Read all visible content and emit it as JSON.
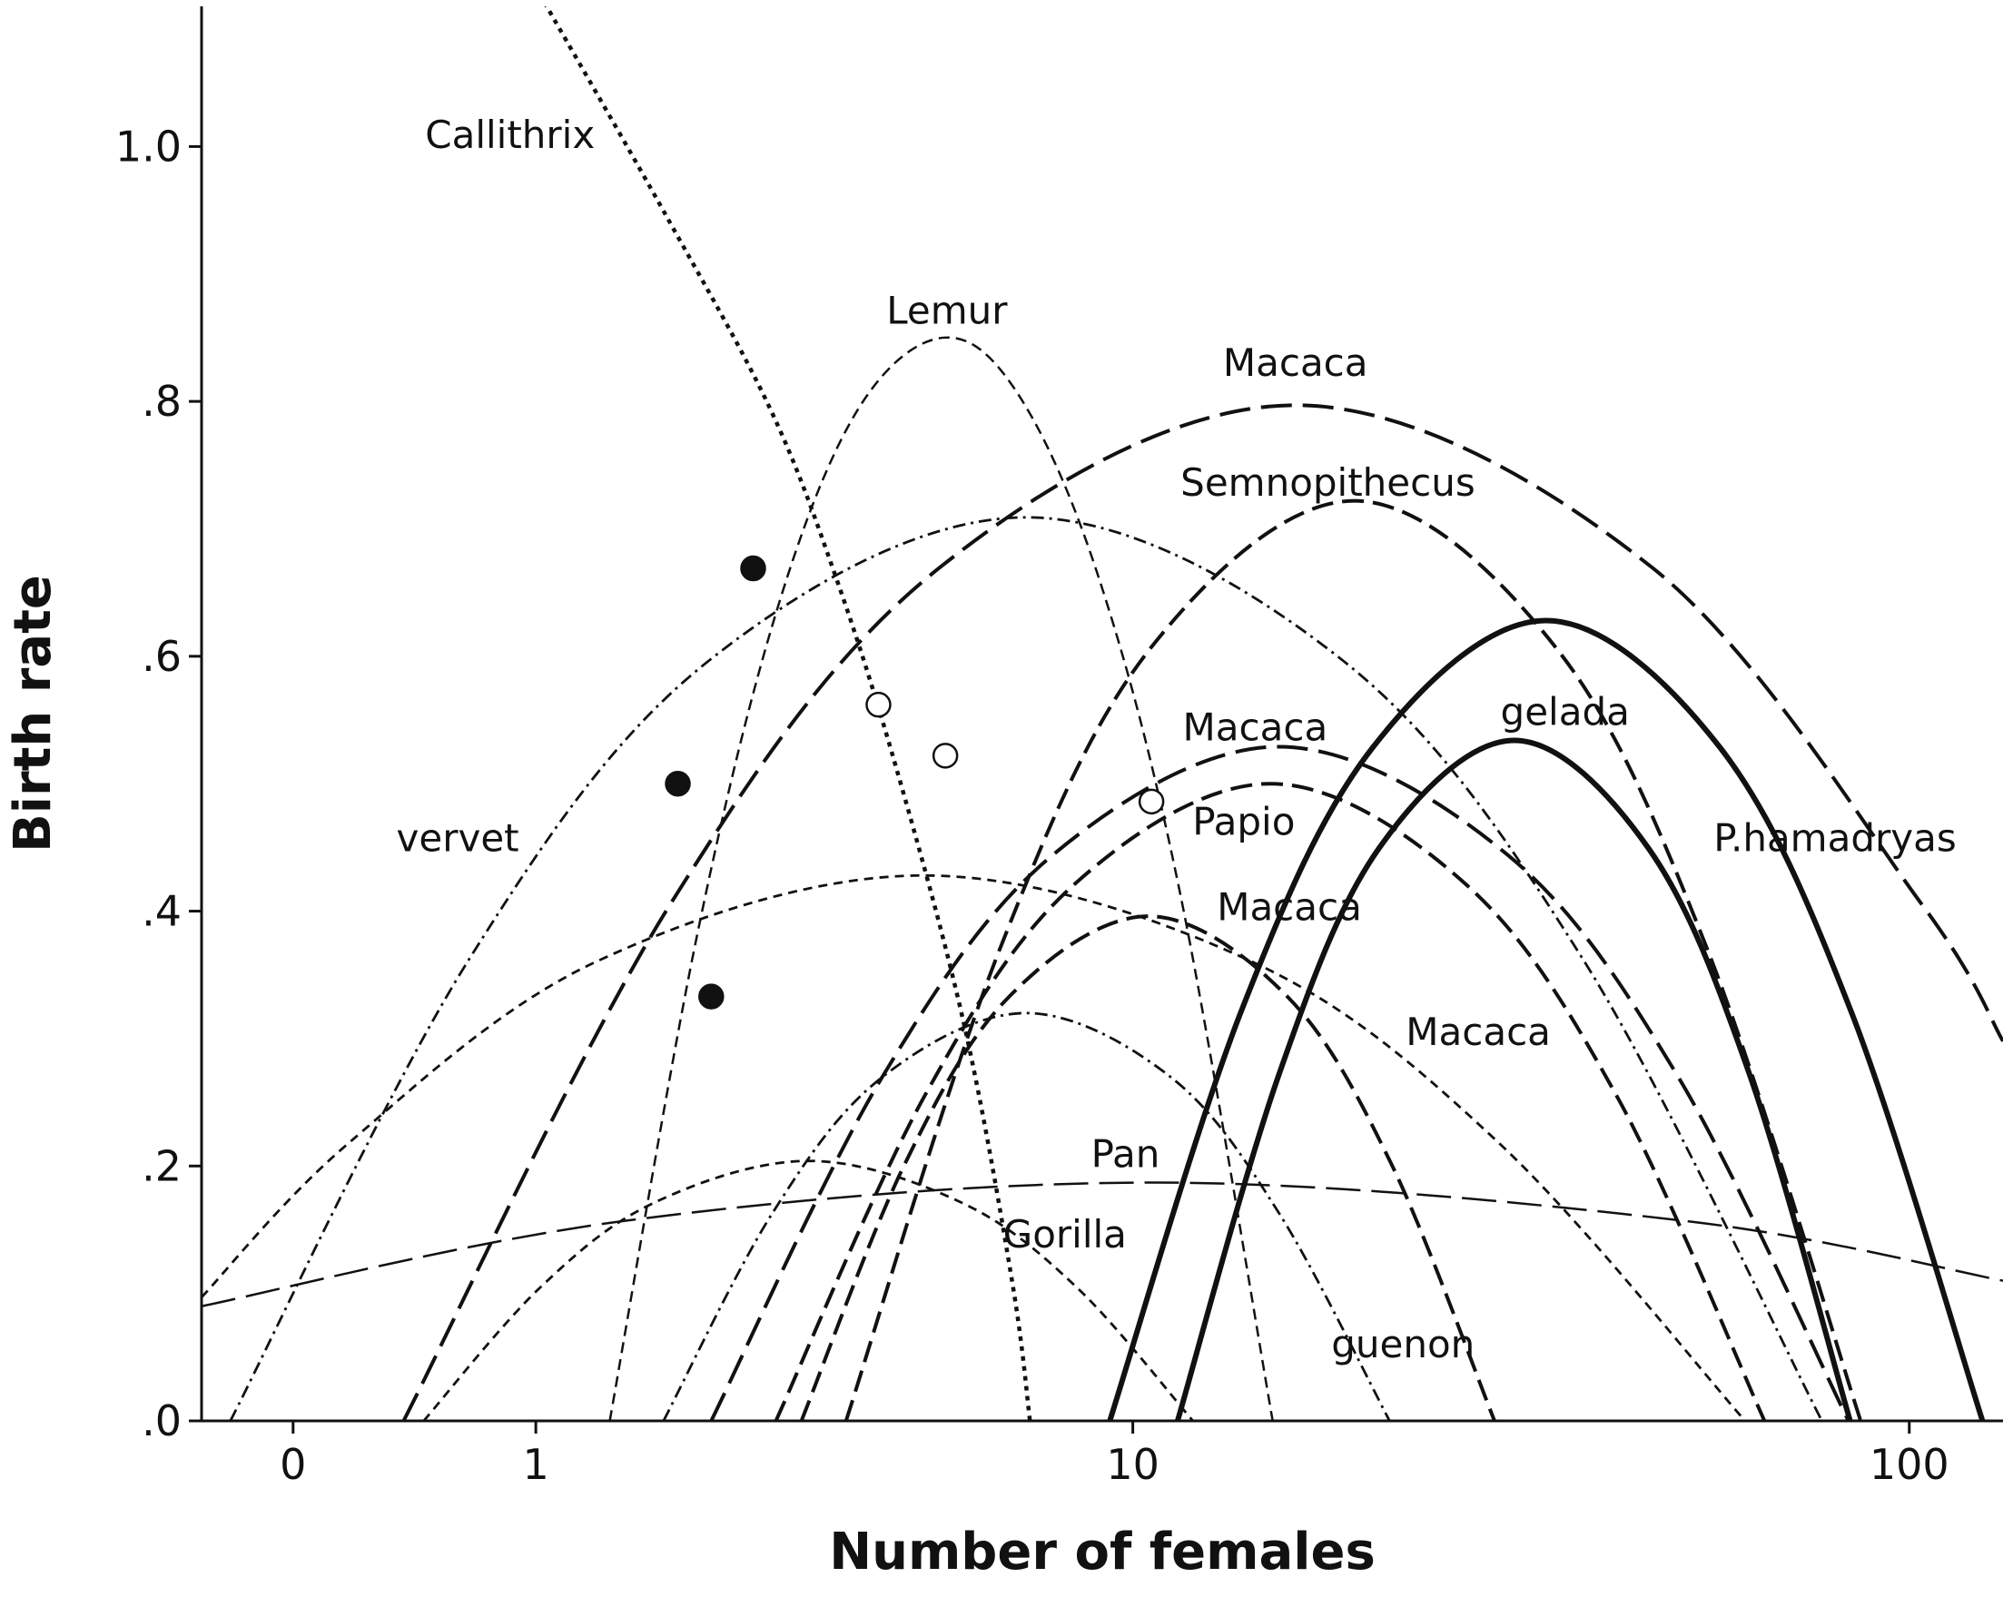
{
  "chart_data": {
    "type": "line",
    "xlabel": "Number of females",
    "ylabel": "Birth rate",
    "xscale": "log1p",
    "xlim": [
      -0.23,
      131
    ],
    "ylim": [
      0,
      1.11
    ],
    "xticks": [
      0,
      1,
      10,
      100
    ],
    "yticks": [
      {
        "value": 0,
        "label": ".0"
      },
      {
        "value": 0.2,
        "label": ".2"
      },
      {
        "value": 0.4,
        "label": ".4"
      },
      {
        "value": 0.6,
        "label": ".6"
      },
      {
        "value": 0.8,
        "label": ".8"
      },
      {
        "value": 1.0,
        "label": "1.0"
      }
    ],
    "color": "#111111",
    "series": [
      {
        "style": "dotted",
        "x": [
          1.05,
          1.9,
          2.9,
          3.7,
          4.6,
          5.8,
          6.8,
          7.2
        ],
        "values": [
          1.113,
          0.946,
          0.795,
          0.664,
          0.512,
          0.31,
          0.108,
          0
        ]
      },
      {
        "style": "dashed-thin",
        "x": [
          1.47,
          2.16,
          2.98,
          4.01,
          5.4,
          6.94,
          9,
          11.6,
          15.4
        ],
        "values": [
          0,
          0.377,
          0.636,
          0.793,
          0.85,
          0.805,
          0.66,
          0.413,
          0
        ]
      },
      {
        "style": "long-dash",
        "x": [
          0.371,
          1.94,
          5.32,
          16.5,
          47.6,
          103.5,
          131
        ],
        "values": [
          0,
          0.406,
          0.669,
          0.797,
          0.669,
          0.406,
          0.298
        ]
      },
      {
        "style": "dashed",
        "x": [
          3.85,
          6.5,
          10.56,
          19.7,
          35.9,
          55.9,
          86.9
        ],
        "values": [
          0,
          0.368,
          0.606,
          0.722,
          0.606,
          0.368,
          0
        ]
      },
      {
        "style": "solid",
        "x": [
          9.3,
          13.96,
          20.8,
          34.8,
          57.9,
          84.7,
          123.5
        ],
        "values": [
          0,
          0.32,
          0.528,
          0.628,
          0.528,
          0.32,
          0
        ]
      },
      {
        "style": "solid",
        "x": [
          11.5,
          15.7,
          21.2,
          31.7,
          47.0,
          63.0,
          84.3
        ],
        "values": [
          0,
          0.272,
          0.449,
          0.534,
          0.449,
          0.272,
          0
        ]
      },
      {
        "style": "long-dash",
        "x": [
          2.3,
          4.38,
          7.75,
          15.7,
          31.1,
          51.2,
          83.9
        ],
        "values": [
          0,
          0.27,
          0.444,
          0.529,
          0.444,
          0.27,
          0
        ]
      },
      {
        "style": "dashed",
        "x": [
          2.97,
          5.07,
          8.27,
          15.3,
          27.6,
          42.8,
          65.8
        ],
        "values": [
          0,
          0.255,
          0.42,
          0.5,
          0.42,
          0.255,
          0
        ]
      },
      {
        "style": "dashed",
        "x": [
          3.27,
          4.74,
          6.73,
          10.5,
          16.1,
          22.0,
          29.9
        ],
        "values": [
          0,
          0.202,
          0.333,
          0.396,
          0.333,
          0.202,
          0
        ]
      },
      {
        "style": "short-dash",
        "x": [
          -0.23,
          0.172,
          1.37,
          5.05,
          14.5,
          30.3,
          62.2
        ],
        "values": [
          0.097,
          0.218,
          0.36,
          0.428,
          0.36,
          0.218,
          0
        ]
      },
      {
        "style": "dash-dot",
        "x": [
          -0.164,
          0.652,
          2.27,
          7.11,
          19.1,
          38.8,
          77.7
        ],
        "values": [
          0,
          0.362,
          0.596,
          0.709,
          0.596,
          0.362,
          0
        ]
      },
      {
        "style": "long-dash-thin",
        "x": [
          -0.23,
          1.58,
          10.7,
          52.1,
          131
        ],
        "values": [
          0.09,
          0.157,
          0.187,
          0.157,
          0.11
        ]
      },
      {
        "style": "short-dash",
        "x": [
          0.452,
          1.02,
          1.8,
          3.36,
          5.76,
          8.4,
          12.06
        ],
        "values": [
          0,
          0.104,
          0.171,
          0.204,
          0.171,
          0.104,
          0
        ]
      },
      {
        "style": "dash-dot",
        "x": [
          1.88,
          2.93,
          4.36,
          7.11,
          11.3,
          15.7,
          21.9
        ],
        "values": [
          0,
          0.163,
          0.269,
          0.32,
          0.269,
          0.163,
          0
        ]
      }
    ],
    "markers": [
      {
        "style": "filled",
        "x": [
          2.72,
          2.0,
          2.3
        ],
        "values": [
          0.669,
          0.5,
          0.333
        ]
      },
      {
        "style": "open",
        "x": [
          4.32,
          5.44,
          10.6
        ],
        "values": [
          0.562,
          0.522,
          0.486
        ]
      }
    ],
    "annotations": [
      {
        "text": "Callithrix",
        "x": 0.858,
        "y": 1.009
      },
      {
        "text": "Lemur",
        "x": 5.47,
        "y": 0.871
      },
      {
        "text": "Macaca",
        "x": 16.5,
        "y": 0.83
      },
      {
        "text": "Semnopithecus",
        "x": 18.2,
        "y": 0.736
      },
      {
        "text": "gelada",
        "x": 36.8,
        "y": 0.556
      },
      {
        "text": "Macaca",
        "x": 14.6,
        "y": 0.544
      },
      {
        "text": "Papio",
        "x": 14.1,
        "y": 0.47
      },
      {
        "text": "P.hamadryas",
        "x": 80.7,
        "y": 0.457
      },
      {
        "text": "vervet",
        "x": 0.6,
        "y": 0.457
      },
      {
        "text": "Macaca",
        "x": 16.2,
        "y": 0.403
      },
      {
        "text": "Macaca",
        "x": 28.5,
        "y": 0.305
      },
      {
        "text": "Pan",
        "x": 9.77,
        "y": 0.209
      },
      {
        "text": "Gorilla",
        "x": 8.06,
        "y": 0.146
      },
      {
        "text": "guenon",
        "x": 22.8,
        "y": 0.06
      }
    ]
  }
}
